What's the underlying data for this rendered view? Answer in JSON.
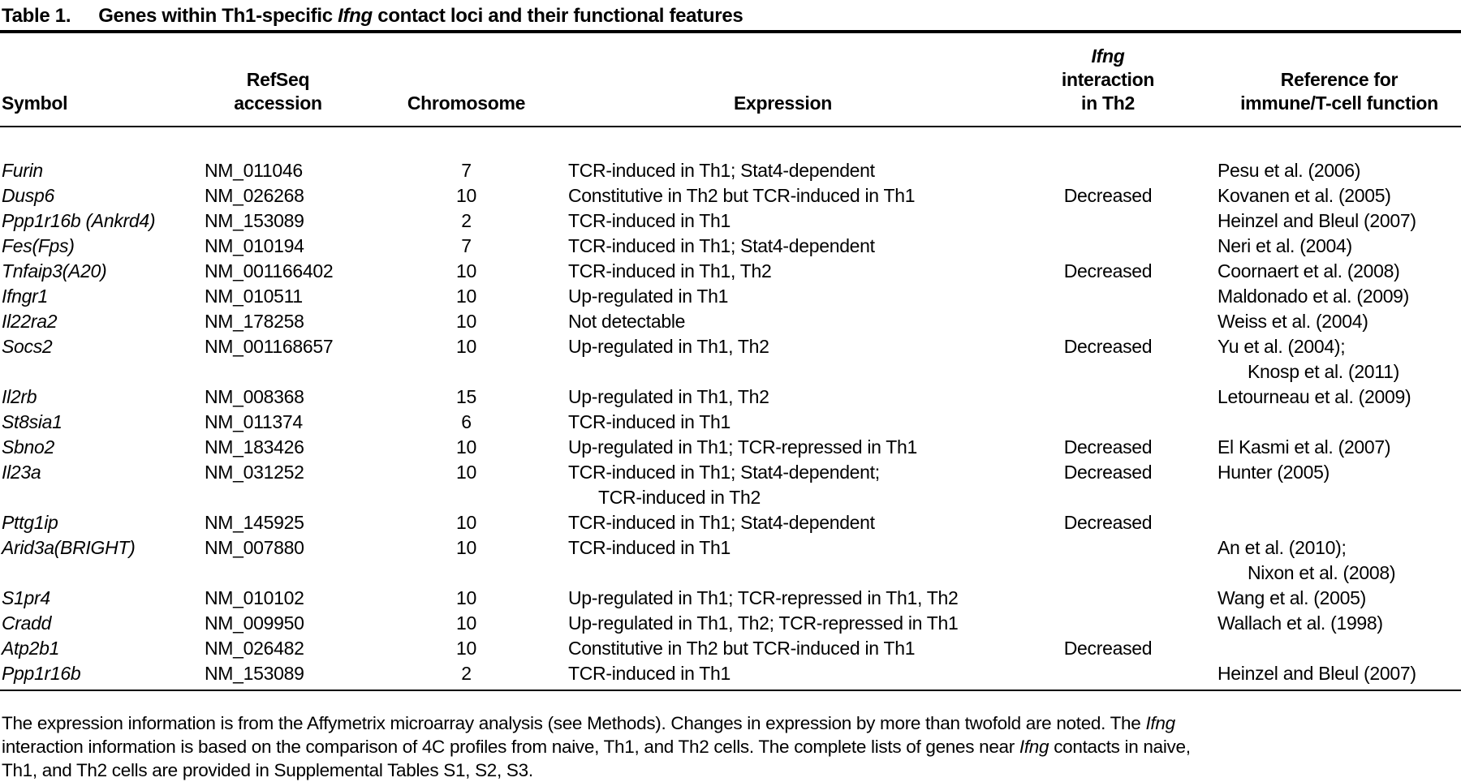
{
  "title": {
    "label": "Table 1.",
    "part1": "Genes within Th1-specific ",
    "gene": "Ifng",
    "part2": " contact loci and their functional features"
  },
  "table": {
    "headers": {
      "symbol": "Symbol",
      "refseq_line1": "RefSeq",
      "refseq_line2": "accession",
      "chromosome": "Chromosome",
      "expression": "Expression",
      "interaction_gene": "Ifng",
      "interaction_rest": " interaction",
      "interaction_line2": "in Th2",
      "reference_line1": "Reference for",
      "reference_line2": "immune/T-cell function"
    },
    "rows": [
      {
        "symbol": "Furin",
        "accession": "NM_011046",
        "chromosome": "7",
        "expression": "TCR-induced in Th1; Stat4-dependent",
        "reference": "Pesu et al. (2006)"
      },
      {
        "symbol": "Dusp6",
        "accession": "NM_026268",
        "chromosome": "10",
        "expression": "Constitutive in Th2 but TCR-induced in Th1",
        "interaction": "Decreased",
        "reference": "Kovanen et al. (2005)"
      },
      {
        "symbol": "Ppp1r16b (Ankrd4)",
        "accession": "NM_153089",
        "chromosome": "2",
        "expression": "TCR-induced in Th1",
        "reference": "Heinzel and Bleul (2007)"
      },
      {
        "symbol": "Fes(Fps)",
        "accession": "NM_010194",
        "chromosome": "7",
        "expression": "TCR-induced in Th1; Stat4-dependent",
        "reference": "Neri et al. (2004)"
      },
      {
        "symbol": "Tnfaip3(A20)",
        "accession": "NM_001166402",
        "chromosome": "10",
        "expression": "TCR-induced in Th1, Th2",
        "interaction": "Decreased",
        "reference": "Coornaert et al. (2008)"
      },
      {
        "symbol": "Ifngr1",
        "accession": "NM_010511",
        "chromosome": "10",
        "expression": "Up-regulated in Th1",
        "reference": "Maldonado et al. (2009)"
      },
      {
        "symbol": "Il22ra2",
        "accession": "NM_178258",
        "chromosome": "10",
        "expression": "Not detectable",
        "reference": "Weiss et al. (2004)"
      },
      {
        "symbol": "Socs2",
        "accession": "NM_001168657",
        "chromosome": "10",
        "expression": "Up-regulated in Th1, Th2",
        "interaction": "Decreased",
        "reference": "Yu et al. (2004);",
        "reference2": "Knosp et al. (2011)"
      },
      {
        "symbol": "Il2rb",
        "accession": "NM_008368",
        "chromosome": "15",
        "expression": "Up-regulated in Th1, Th2",
        "reference": "Letourneau et al. (2009)"
      },
      {
        "symbol": "St8sia1",
        "accession": "NM_011374",
        "chromosome": "6",
        "expression": "TCR-induced in Th1"
      },
      {
        "symbol": "Sbno2",
        "accession": "NM_183426",
        "chromosome": "10",
        "expression": "Up-regulated in Th1; TCR-repressed in Th1",
        "interaction": "Decreased",
        "reference": "El Kasmi et al. (2007)"
      },
      {
        "symbol": "Il23a",
        "accession": "NM_031252",
        "chromosome": "10",
        "expression": "TCR-induced in Th1; Stat4-dependent;",
        "expression2": "TCR-induced in Th2",
        "interaction": "Decreased",
        "reference": "Hunter (2005)"
      },
      {
        "symbol": "Pttg1ip",
        "accession": "NM_145925",
        "chromosome": "10",
        "expression": "TCR-induced in Th1; Stat4-dependent",
        "interaction": "Decreased"
      },
      {
        "symbol": "Arid3a(BRIGHT)",
        "accession": "NM_007880",
        "chromosome": "10",
        "expression": "TCR-induced in Th1",
        "reference": "An et al. (2010);",
        "reference2": "Nixon et al. (2008)"
      },
      {
        "symbol": "S1pr4",
        "accession": "NM_010102",
        "chromosome": "10",
        "expression": "Up-regulated in Th1; TCR-repressed in Th1, Th2",
        "reference": "Wang et al. (2005)"
      },
      {
        "symbol": "Cradd",
        "accession": "NM_009950",
        "chromosome": "10",
        "expression": "Up-regulated in Th1, Th2; TCR-repressed in Th1",
        "reference": "Wallach et al. (1998)"
      },
      {
        "symbol": "Atp2b1",
        "accession": "NM_026482",
        "chromosome": "10",
        "expression": "Constitutive in Th2 but TCR-induced in Th1",
        "interaction": "Decreased"
      },
      {
        "symbol": "Ppp1r16b",
        "accession": "NM_153089",
        "chromosome": "2",
        "expression": "TCR-induced in Th1",
        "reference": "Heinzel and Bleul (2007)"
      }
    ]
  },
  "footnote": {
    "line1_part1": "The expression information is from the Affymetrix microarray analysis (see Methods). Changes in expression by more than twofold are noted. The ",
    "line1_gene": "Ifng",
    "line2_part1": "interaction information is based on the comparison of 4C profiles from naive, Th1, and Th2 cells. The complete lists of genes near ",
    "line2_gene": "Ifng",
    "line2_part2": " contacts in naive,",
    "line3": "Th1, and Th2 cells are provided in Supplemental Tables S1, S2, S3."
  },
  "colors": {
    "text": "#000000",
    "background": "#ffffff",
    "rule": "#000000"
  }
}
